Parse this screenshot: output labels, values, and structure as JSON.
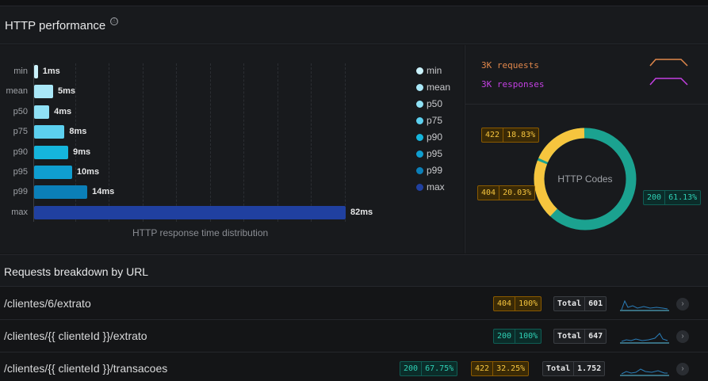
{
  "panel": {
    "title": "HTTP performance",
    "info_icon": "ⓘ"
  },
  "chart_data": {
    "type": "bar",
    "orientation": "horizontal",
    "caption": "HTTP response time distribution",
    "categories": [
      "min",
      "mean",
      "p50",
      "p75",
      "p90",
      "p95",
      "p99",
      "max"
    ],
    "values": [
      1,
      5,
      4,
      8,
      9,
      10,
      14,
      82
    ],
    "value_labels": [
      "1ms",
      "5ms",
      "4ms",
      "8ms",
      "9ms",
      "10ms",
      "14ms",
      "82ms"
    ],
    "unit": "ms",
    "colors": [
      "#cbf2fb",
      "#a9e7f7",
      "#8fe1f5",
      "#5cd0ef",
      "#15b5dc",
      "#0f9ed0",
      "#0b7fb8",
      "#2040a0"
    ],
    "legend": [
      "min",
      "mean",
      "p50",
      "p75",
      "p90",
      "p95",
      "p99",
      "max"
    ],
    "grid": true
  },
  "requests_legend": {
    "requests": {
      "label": "3K requests",
      "color": "#e0874b"
    },
    "responses": {
      "label": "3K responses",
      "color": "#c340e2"
    }
  },
  "pie": {
    "center_label": "HTTP Codes",
    "slices": [
      {
        "code": "200",
        "percent": "61.13%",
        "value": 61.13,
        "color": "#1ba290"
      },
      {
        "code": "422",
        "percent": "18.83%",
        "value": 18.83,
        "color": "#f6c53e"
      },
      {
        "code": "404",
        "percent": "20.03%",
        "value": 20.03,
        "color": "#f6c53e"
      }
    ]
  },
  "breakdown": {
    "title": "Requests breakdown by URL",
    "rows": [
      {
        "url": "/clientes/6/extrato",
        "codes": [
          {
            "code": "404",
            "percent": "100%"
          }
        ],
        "total_label": "Total",
        "total": "601"
      },
      {
        "url": "/clientes/{{ clienteId }}/extrato",
        "codes": [
          {
            "code": "200",
            "percent": "100%"
          }
        ],
        "total_label": "Total",
        "total": "647"
      },
      {
        "url": "/clientes/{{ clienteId }}/transacoes",
        "codes": [
          {
            "code": "200",
            "percent": "67.75%"
          },
          {
            "code": "422",
            "percent": "32.25%"
          }
        ],
        "total_label": "Total",
        "total": "1.752"
      }
    ]
  },
  "icons": {
    "row_action": "chevron-right-icon",
    "help": "info-icon"
  }
}
